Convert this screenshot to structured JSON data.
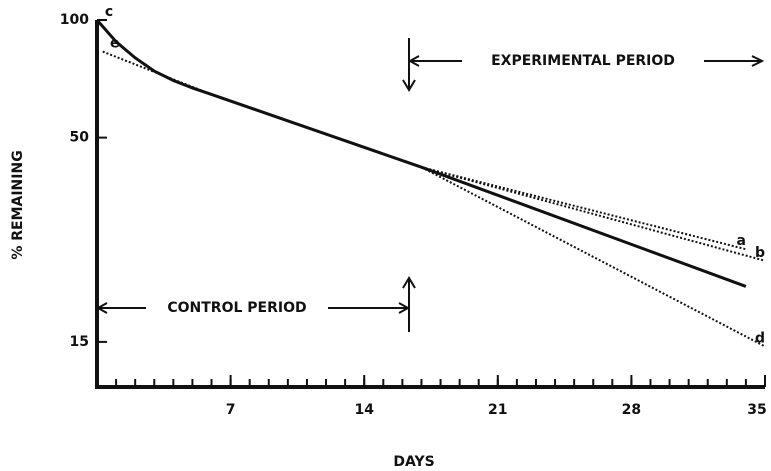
{
  "chart_data": {
    "type": "line",
    "xlabel": "DAYS",
    "ylabel": "% REMAINING",
    "annotations": [
      "EXPERIMENTAL PERIOD",
      "CONTROL PERIOD"
    ],
    "xlim": [
      0,
      35
    ],
    "xticks": [
      7,
      14,
      21,
      28,
      35
    ],
    "ylim": [
      11.5,
      100
    ],
    "yticks": [
      15,
      50,
      100
    ],
    "log_y": true,
    "series": [
      {
        "name": "c",
        "color": "#111111",
        "style": "solid",
        "x": [
          0,
          1,
          2,
          3,
          4,
          5,
          6,
          17,
          34
        ],
        "values": [
          100,
          88,
          80,
          74,
          70,
          67,
          64.5,
          42,
          20.8
        ]
      },
      {
        "name": "a",
        "color": "#111111",
        "style": "dotted",
        "x": [
          17,
          34
        ],
        "values": [
          42,
          25.9
        ]
      },
      {
        "name": "b",
        "color": "#111111",
        "style": "dotted",
        "x": [
          17,
          35
        ],
        "values": [
          42,
          24.2
        ]
      },
      {
        "name": "d",
        "color": "#111111",
        "style": "dotted",
        "x": [
          17,
          35
        ],
        "values": [
          42,
          14.6
        ]
      },
      {
        "name": "e",
        "color": "#111111",
        "style": "dotted",
        "x": [
          0.3,
          6
        ],
        "values": [
          83,
          64.5
        ]
      }
    ]
  }
}
